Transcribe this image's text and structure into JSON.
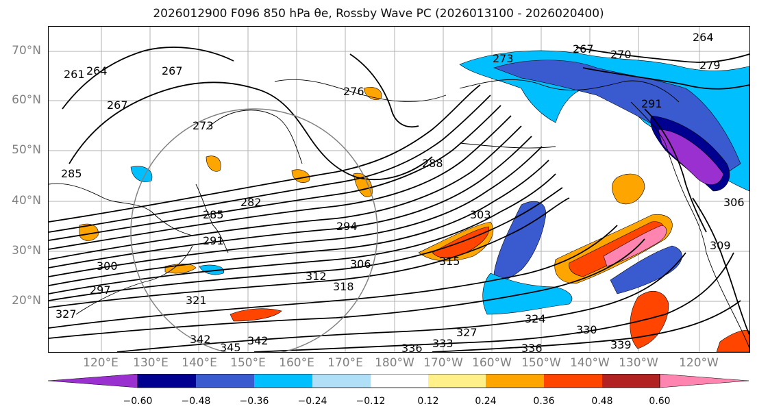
{
  "title": "2026012900 F096 850 hPa θe, Rossby Wave PC (2026013100 - 2026020400)",
  "lat_labels": [
    "70°N",
    "60°N",
    "50°N",
    "40°N",
    "30°N",
    "20°N"
  ],
  "lon_labels": [
    "120°E",
    "130°E",
    "140°E",
    "150°E",
    "160°E",
    "170°E",
    "180°W",
    "170°W",
    "160°W",
    "150°W",
    "140°W",
    "130°W",
    "120°W"
  ],
  "contour_labels": [
    "264",
    "267",
    "270",
    "273",
    "276",
    "261",
    "264",
    "267",
    "267",
    "273",
    "279",
    "285",
    "282",
    "285",
    "288",
    "291",
    "291",
    "294",
    "297",
    "300",
    "303",
    "306",
    "306",
    "309",
    "312",
    "315",
    "318",
    "321",
    "324",
    "327",
    "327",
    "330",
    "333",
    "336",
    "336",
    "339",
    "342",
    "342",
    "345"
  ],
  "colorbar": {
    "ticks": [
      "−0.60",
      "−0.48",
      "−0.36",
      "−0.24",
      "−0.12",
      "0.12",
      "0.24",
      "0.36",
      "0.48",
      "0.60"
    ],
    "colors": [
      "#9b30d0",
      "#000090",
      "#3a5bd0",
      "#00bfff",
      "#b0e0f8",
      "#ffffff",
      "#fff08a",
      "#ffa500",
      "#ff4500",
      "#b22222",
      "#ff85b0"
    ]
  }
}
